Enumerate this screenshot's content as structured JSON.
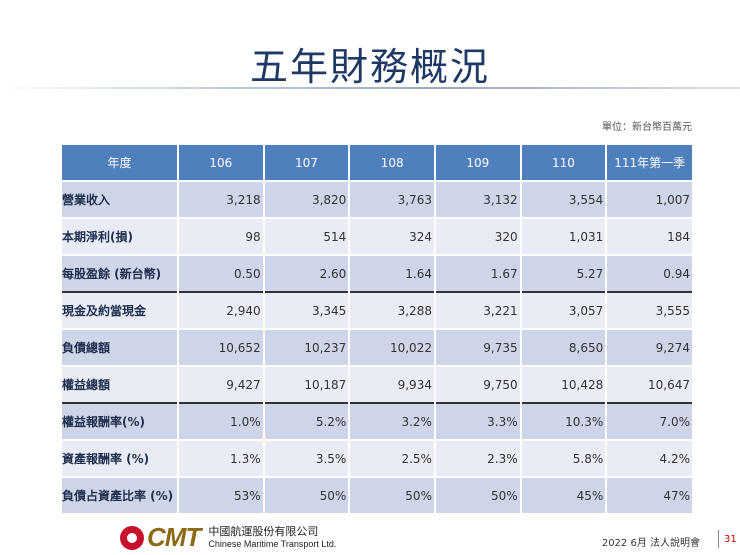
{
  "title": "五年財務概況",
  "unit": "單位：新台幣百萬元",
  "table": {
    "headers": [
      "年度",
      "106",
      "107",
      "108",
      "109",
      "110",
      "111年第一季"
    ],
    "rows": [
      [
        "營業收入",
        "3,218",
        "3,820",
        "3,763",
        "3,132",
        "3,554",
        "1,007"
      ],
      [
        "本期淨利(損)",
        "98",
        "514",
        "324",
        "320",
        "1,031",
        "184"
      ],
      [
        "每股盈餘 (新台幣)",
        "0.50",
        "2.60",
        "1.64",
        "1.67",
        "5.27",
        "0.94"
      ],
      [
        "現金及約當現金",
        "2,940",
        "3,345",
        "3,288",
        "3,221",
        "3,057",
        "3,555"
      ],
      [
        "負債總額",
        "10,652",
        "10,237",
        "10,022",
        "9,735",
        "8,650",
        "9,274"
      ],
      [
        "權益總額",
        "9,427",
        "10,187",
        "9,934",
        "9,750",
        "10,428",
        "10,647"
      ],
      [
        "權益報酬率(%)",
        "1.0%",
        "5.2%",
        "3.2%",
        "3.3%",
        "10.3%",
        "7.0%"
      ],
      [
        "資產報酬率 (%)",
        "1.3%",
        "3.5%",
        "2.5%",
        "2.3%",
        "5.8%",
        "4.2%"
      ],
      [
        "負債占資產比率 (%)",
        "53%",
        "50%",
        "50%",
        "50%",
        "45%",
        "47%"
      ]
    ]
  },
  "footer": {
    "logo_text": "CMT",
    "company_zh": "中國航運股份有限公司",
    "company_en": "Chinese Maritime Transport Ltd.",
    "event": "2022  6月 法人說明會",
    "page": "31"
  },
  "colors": {
    "header": "#4f7fbc",
    "row_dark": "#cfd5e8",
    "row_light": "#e9ecf5",
    "title": "#1f3864",
    "logo_red": "#c8102e"
  }
}
